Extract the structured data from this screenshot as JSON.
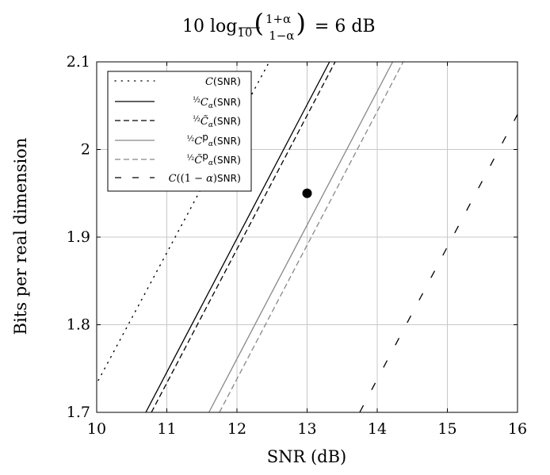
{
  "chart_data": {
    "type": "line",
    "title": "10 log₁₀((1+α)/(1−α)) = 6 dB",
    "xlabel": "SNR (dB)",
    "ylabel": "Bits per real dimension",
    "xlim": [
      10,
      16
    ],
    "ylim": [
      1.7,
      2.1
    ],
    "xticks": [
      "10",
      "11",
      "12",
      "13",
      "14",
      "15",
      "16"
    ],
    "yticks": [
      "1.7",
      "1.8",
      "1.9",
      "2",
      "2.1"
    ],
    "grid": true,
    "legend_position": "top-left",
    "series": [
      {
        "name": "C(SNR)",
        "style": "dotted",
        "color": "#000000",
        "x": [
          9.98,
          12.46
        ],
        "y": [
          1.73,
          2.1
        ]
      },
      {
        "name": "½Cα(SNR)",
        "style": "solid",
        "color": "#000000",
        "x": [
          10.7,
          13.32
        ],
        "y": [
          1.7,
          2.1
        ]
      },
      {
        "name": "½C̃α(SNR)",
        "style": "dashed",
        "color": "#000000",
        "x": [
          10.78,
          13.4
        ],
        "y": [
          1.7,
          2.1
        ]
      },
      {
        "name": "½Cᵖα(SNR)",
        "style": "solid",
        "color": "#888888",
        "x": [
          11.6,
          14.22
        ],
        "y": [
          1.7,
          2.1
        ]
      },
      {
        "name": "½C̃ᵖα(SNR)",
        "style": "dashed",
        "color": "#888888",
        "x": [
          11.75,
          14.37
        ],
        "y": [
          1.7,
          2.1
        ]
      },
      {
        "name": "C((1−α)SNR)",
        "style": "longdash",
        "color": "#000000",
        "x": [
          13.75,
          16.0
        ],
        "y": [
          1.7,
          2.04
        ]
      }
    ],
    "points": [
      {
        "x": 13.0,
        "y": 1.95
      }
    ]
  }
}
